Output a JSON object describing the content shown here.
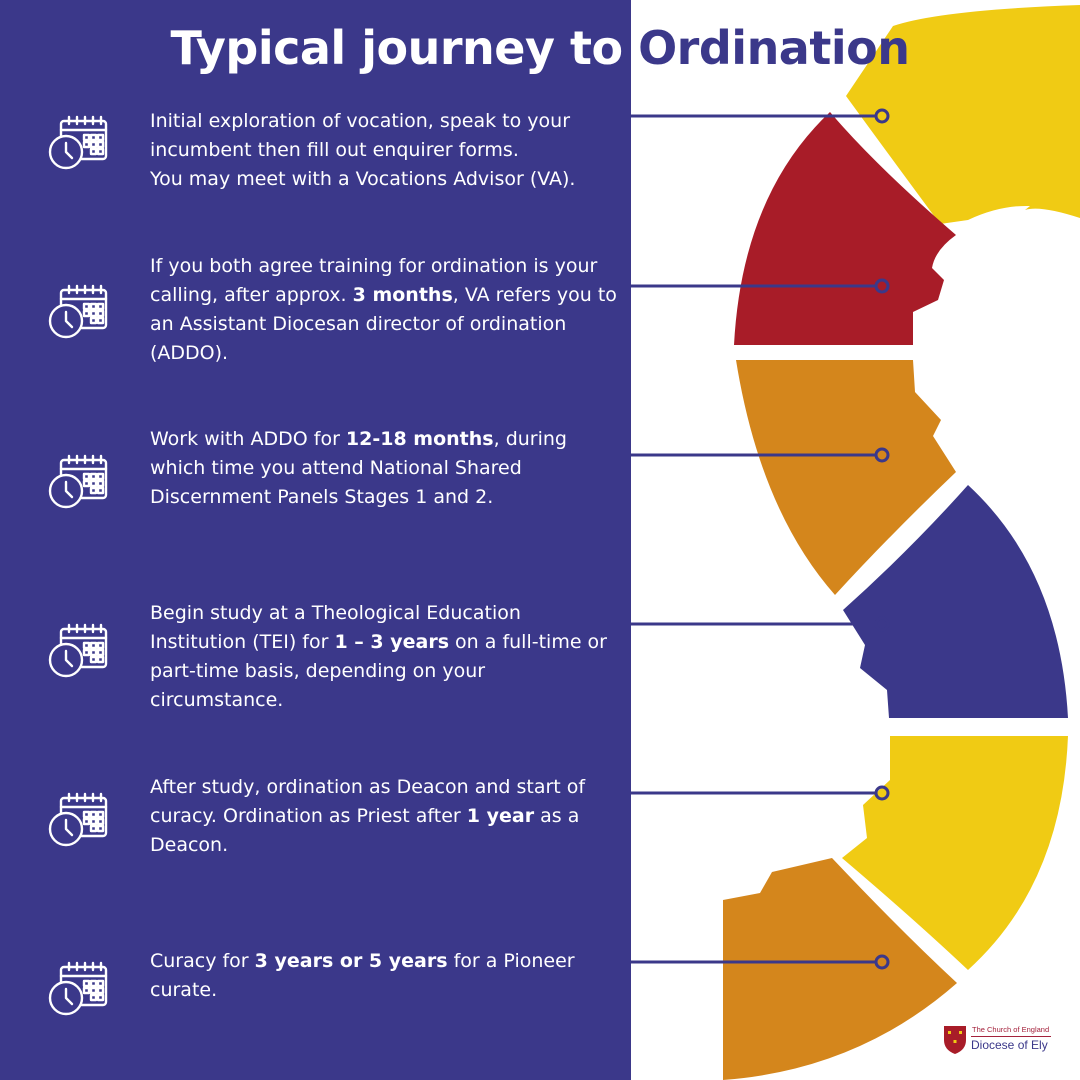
{
  "header": {
    "title_part1": "Typical journey to",
    "title_part2": "Ordination"
  },
  "colors": {
    "panel": "#3b388a",
    "yellow": "#f0cb14",
    "red": "#a81c28",
    "orange": "#d4861c",
    "navy": "#3b388a",
    "connector": "#3b388a",
    "text": "#ffffff"
  },
  "steps": [
    {
      "icon": "calendar-clock-icon",
      "segments": [
        {
          "t": "Initial exploration of vocation, speak to your incumbent then fill out enquirer forms.",
          "b": false
        },
        {
          "t": "\nYou may meet with a Vocations Advisor (VA).",
          "b": false
        }
      ]
    },
    {
      "icon": "calendar-clock-icon",
      "segments": [
        {
          "t": "If you both agree training for ordination is your calling, after approx. ",
          "b": false
        },
        {
          "t": "3 months",
          "b": true
        },
        {
          "t": ", VA refers you to an Assistant Diocesan director of ordination (ADDO).",
          "b": false
        }
      ]
    },
    {
      "icon": "calendar-clock-icon",
      "segments": [
        {
          "t": "Work with ADDO for ",
          "b": false
        },
        {
          "t": "12-18 months",
          "b": true
        },
        {
          "t": ", during which time you attend National Shared Discernment Panels Stages 1 and 2.",
          "b": false
        }
      ]
    },
    {
      "icon": "calendar-clock-icon",
      "segments": [
        {
          "t": "Begin study at a Theological Education Institution (TEI) for ",
          "b": false
        },
        {
          "t": "1 – 3 years",
          "b": true
        },
        {
          "t": " on a full-time or part-time basis, depending on your circumstance.",
          "b": false
        }
      ]
    },
    {
      "icon": "calendar-clock-icon",
      "segments": [
        {
          "t": "After study, ordination as Deacon and start of curacy. Ordination as Priest after ",
          "b": false
        },
        {
          "t": "1 year",
          "b": true
        },
        {
          "t": " as a Deacon.",
          "b": false
        }
      ]
    },
    {
      "icon": "calendar-clock-icon",
      "segments": [
        {
          "t": "Curacy  for ",
          "b": false
        },
        {
          "t": "3 years or 5 years",
          "b": true
        },
        {
          "t": " for a Pioneer curate.",
          "b": false
        }
      ]
    }
  ],
  "logo": {
    "org_line": "The Church of England",
    "diocese": "Diocese of Ely"
  }
}
